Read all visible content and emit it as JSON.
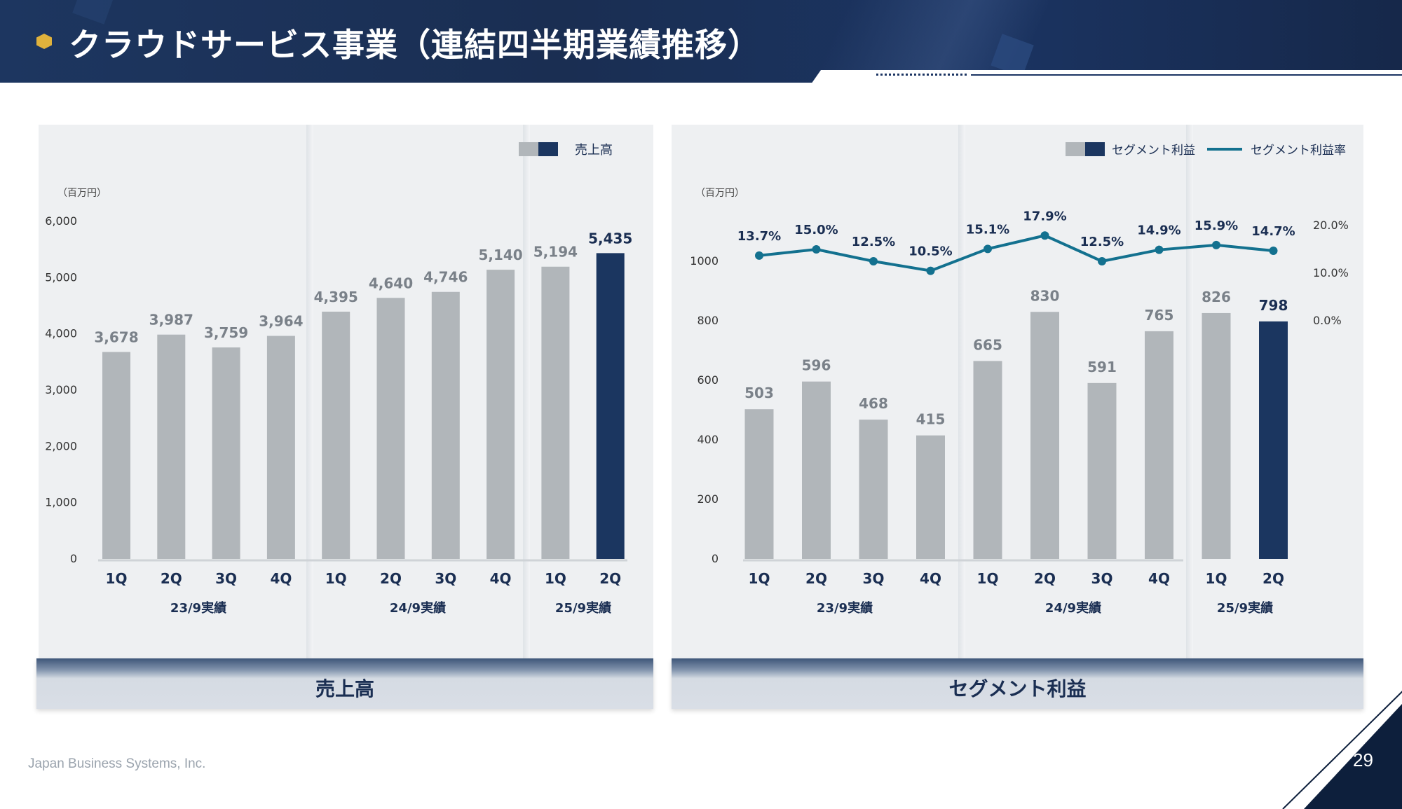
{
  "header": {
    "title": "クラウドサービス事業（連結四半期業績推移）"
  },
  "colors": {
    "bar_gray": "#b1b6ba",
    "bar_navy": "#1b3660",
    "line_teal": "#13718f",
    "header_navy": "#1b3462"
  },
  "left_chart": {
    "unit": "（百万円）",
    "legend": "売上高",
    "footer_label": "売上高",
    "y_ticks": [
      "0",
      "1,000",
      "2,000",
      "3,000",
      "4,000",
      "5,000",
      "6,000"
    ]
  },
  "right_chart": {
    "unit": "（百万円）",
    "legend_bar": "セグメント利益",
    "legend_line": "セグメント利益率",
    "footer_label": "セグメント利益",
    "y_ticks_left": [
      "0",
      "200",
      "400",
      "600",
      "800",
      "1000"
    ],
    "y_ticks_right": [
      "0.0%",
      "10.0%",
      "20.0%"
    ]
  },
  "chart_data": [
    {
      "type": "bar",
      "categories": [
        "1Q",
        "2Q",
        "3Q",
        "4Q",
        "1Q",
        "2Q",
        "3Q",
        "4Q",
        "1Q",
        "2Q"
      ],
      "groups": [
        {
          "label": "23/9実績",
          "span": 4
        },
        {
          "label": "24/9実績",
          "span": 4
        },
        {
          "label": "25/9実績",
          "span": 2
        }
      ],
      "series": [
        {
          "name": "売上高",
          "values": [
            3678,
            3987,
            3759,
            3964,
            4395,
            4640,
            4746,
            5140,
            5194,
            5435
          ]
        }
      ],
      "value_labels": [
        "3,678",
        "3,987",
        "3,759",
        "3,964",
        "4,395",
        "4,640",
        "4,746",
        "5,140",
        "5,194",
        "5,435"
      ],
      "highlight_index": 9,
      "ylim": [
        0,
        6000
      ],
      "ylabel": "（百万円）"
    },
    {
      "type": "bar",
      "categories": [
        "1Q",
        "2Q",
        "3Q",
        "4Q",
        "1Q",
        "2Q",
        "3Q",
        "4Q",
        "1Q",
        "2Q"
      ],
      "groups": [
        {
          "label": "23/9実績",
          "span": 4
        },
        {
          "label": "24/9実績",
          "span": 4
        },
        {
          "label": "25/9実績",
          "span": 2
        }
      ],
      "series": [
        {
          "name": "セグメント利益",
          "values": [
            503,
            596,
            468,
            415,
            665,
            830,
            591,
            765,
            826,
            798
          ]
        },
        {
          "name": "セグメント利益率",
          "type": "line",
          "values": [
            13.7,
            15.0,
            12.5,
            10.5,
            15.1,
            17.9,
            12.5,
            14.9,
            15.9,
            14.7
          ],
          "labels": [
            "13.7%",
            "15.0%",
            "12.5%",
            "10.5%",
            "15.1%",
            "17.9%",
            "12.5%",
            "14.9%",
            "15.9%",
            "14.7%"
          ]
        }
      ],
      "value_labels": [
        "503",
        "596",
        "468",
        "415",
        "665",
        "830",
        "591",
        "765",
        "826",
        "798"
      ],
      "highlight_index": 9,
      "ylim": [
        0,
        1000
      ],
      "y2lim": [
        0,
        20
      ],
      "ylabel": "（百万円）"
    }
  ],
  "footer": {
    "company": "Japan Business Systems, Inc.",
    "page_number": "29"
  }
}
